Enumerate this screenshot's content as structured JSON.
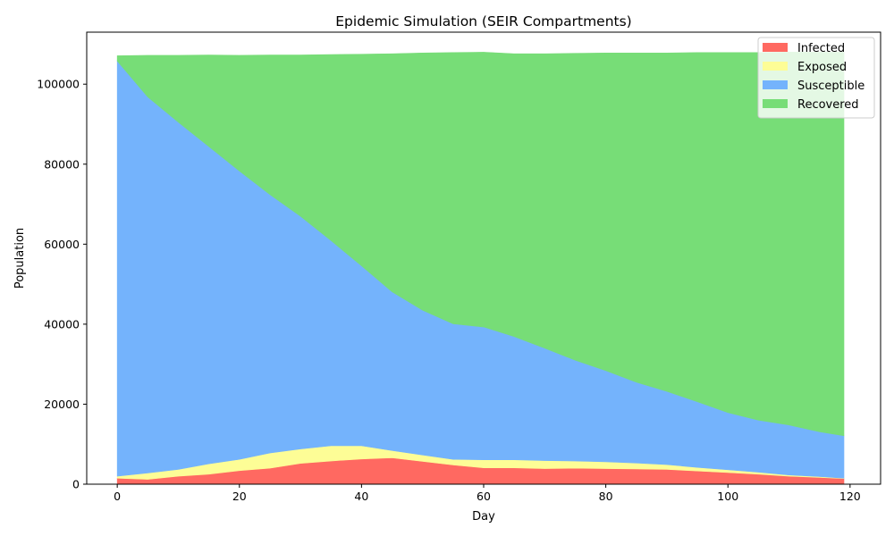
{
  "chart_data": {
    "type": "area",
    "stacked": true,
    "title": "Epidemic Simulation (SEIR Compartments)",
    "xlabel": "Day",
    "ylabel": "Population",
    "xlim": [
      -5,
      125
    ],
    "ylim": [
      0,
      113000
    ],
    "xticks": [
      0,
      20,
      40,
      60,
      80,
      100,
      120
    ],
    "yticks": [
      0,
      20000,
      40000,
      60000,
      80000,
      100000
    ],
    "grid": false,
    "legend_position": "upper right",
    "x": [
      0,
      5,
      10,
      15,
      20,
      25,
      30,
      35,
      40,
      45,
      50,
      55,
      60,
      65,
      70,
      75,
      80,
      85,
      90,
      95,
      100,
      105,
      110,
      115,
      119
    ],
    "series": [
      {
        "name": "Infected",
        "color": "#ff6961",
        "values": [
          1500,
          1200,
          2000,
          2500,
          3400,
          4000,
          5200,
          5800,
          6300,
          6600,
          5700,
          4800,
          4100,
          4100,
          3900,
          4000,
          3900,
          3800,
          3700,
          3300,
          2900,
          2500,
          2000,
          1700,
          1400
        ]
      },
      {
        "name": "Exposed",
        "color": "#fdfd96",
        "values": [
          500,
          1600,
          1700,
          2600,
          2800,
          3800,
          3600,
          3800,
          3300,
          1800,
          1600,
          1400,
          2000,
          2000,
          2000,
          1800,
          1700,
          1500,
          1200,
          900,
          700,
          500,
          300,
          200,
          100
        ]
      },
      {
        "name": "Susceptible",
        "color": "#74b3fc",
        "values": [
          103800,
          94000,
          86800,
          79300,
          72100,
          64600,
          58200,
          51300,
          45000,
          39700,
          36200,
          33900,
          33200,
          30800,
          28100,
          25200,
          22800,
          20200,
          18300,
          16400,
          14300,
          13000,
          12500,
          11200,
          10600
        ]
      },
      {
        "name": "Recovered",
        "color": "#77dd77",
        "values": [
          1300,
          10400,
          16700,
          22900,
          28900,
          34900,
          40300,
          46500,
          52900,
          59500,
          64300,
          67800,
          68700,
          70700,
          73600,
          76700,
          79400,
          82300,
          84600,
          87300,
          90000,
          91900,
          93200,
          94900,
          95900
        ]
      }
    ]
  }
}
